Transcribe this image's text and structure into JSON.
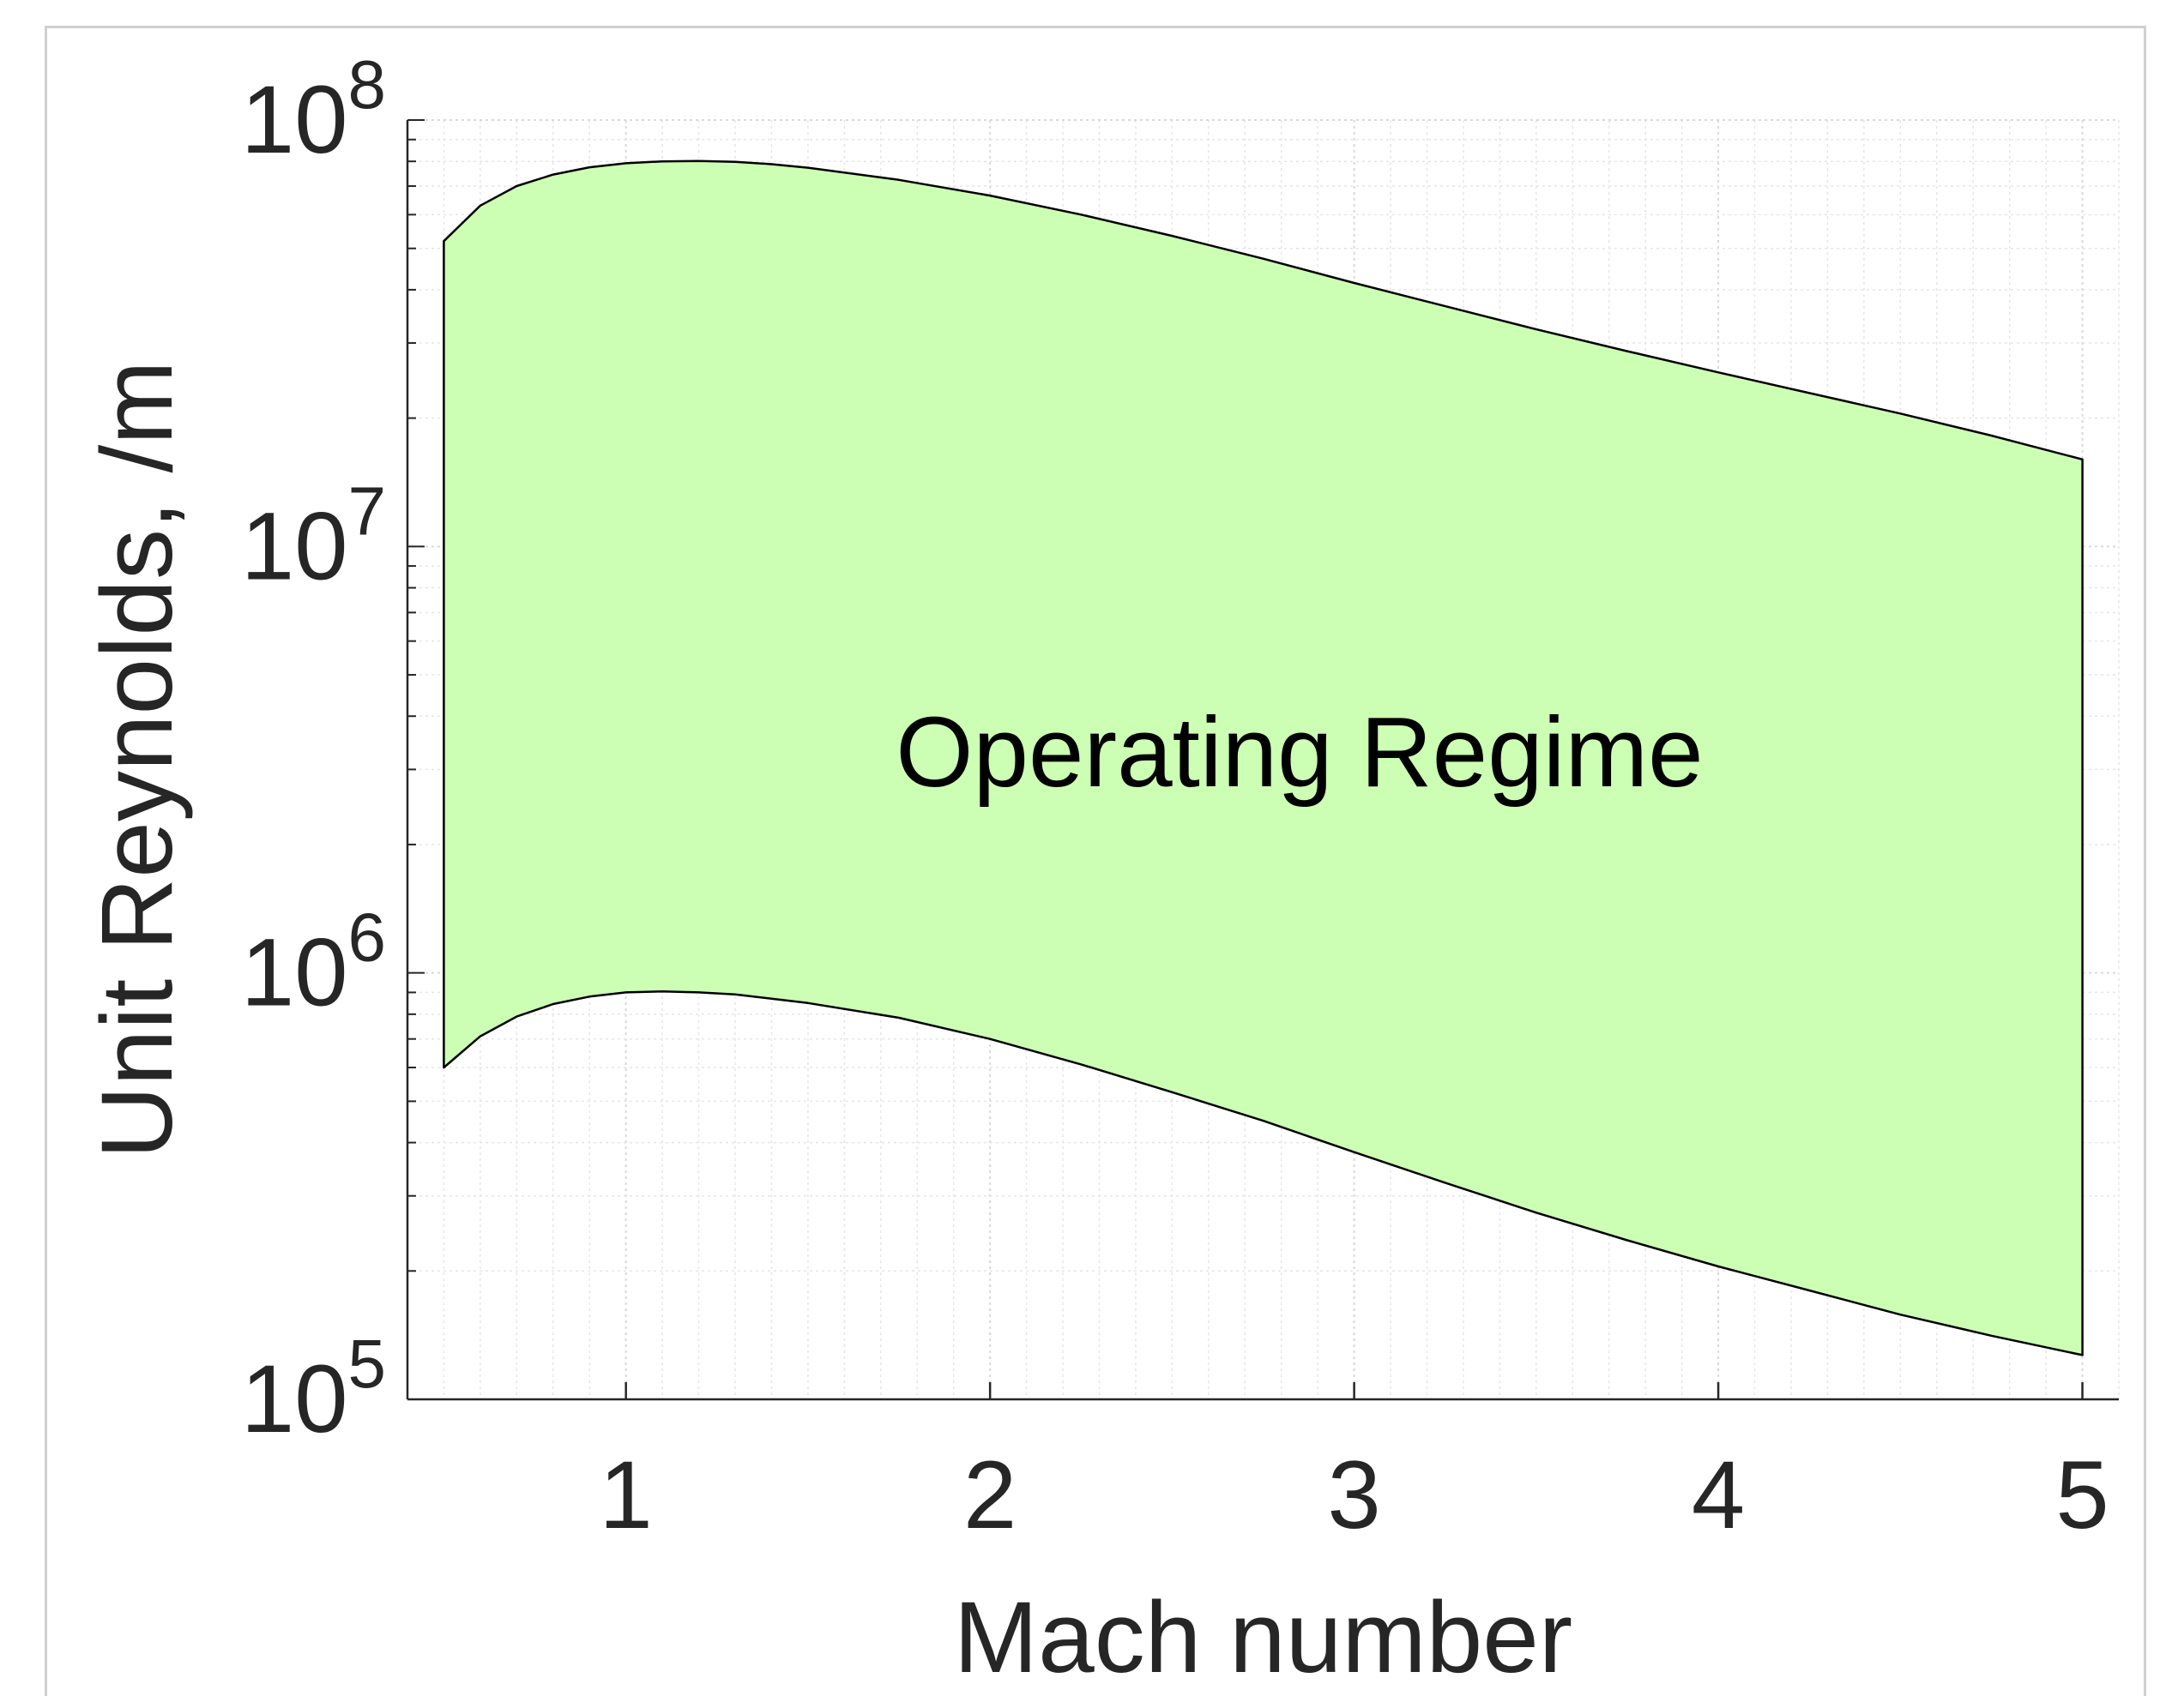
{
  "chart_data": {
    "type": "area",
    "title": "",
    "xlabel": "Mach number",
    "ylabel": "Unit Reynolds, /m",
    "xlim": [
      0.4,
      5.1
    ],
    "ylim": [
      100000,
      100000000
    ],
    "yscale": "log",
    "grid": "on (major and minor)",
    "x_ticks": [
      {
        "value": 1,
        "label": "1"
      },
      {
        "value": 2,
        "label": "2"
      },
      {
        "value": 3,
        "label": "3"
      },
      {
        "value": 4,
        "label": "4"
      },
      {
        "value": 5,
        "label": "5"
      }
    ],
    "y_ticks": [
      {
        "value": 100000,
        "base": "10",
        "exp": "5"
      },
      {
        "value": 1000000,
        "base": "10",
        "exp": "6"
      },
      {
        "value": 10000000,
        "base": "10",
        "exp": "7"
      },
      {
        "value": 100000000,
        "base": "10",
        "exp": "8"
      }
    ],
    "fill_color": "#ccffb3",
    "edge_color": "#000000",
    "series": [
      {
        "role": "upper_bound",
        "x": [
          0.5,
          0.6,
          0.7,
          0.8,
          0.9,
          1.0,
          1.1,
          1.2,
          1.3,
          1.4,
          1.5,
          1.75,
          2.0,
          2.25,
          2.5,
          2.75,
          3.0,
          3.25,
          3.5,
          3.75,
          4.0,
          4.25,
          4.5,
          4.75,
          5.0
        ],
        "y": [
          52000000,
          63000000,
          70000000,
          74500000,
          77500000,
          79200000,
          80000000,
          80200000,
          79800000,
          78800000,
          77300000,
          72400000,
          66500000,
          60000000,
          53500000,
          47300000,
          41500000,
          36600000,
          32300000,
          28700000,
          25600000,
          22900000,
          20500000,
          18200000,
          16000000
        ]
      },
      {
        "role": "lower_bound",
        "x": [
          0.5,
          0.6,
          0.7,
          0.8,
          0.9,
          1.0,
          1.1,
          1.2,
          1.3,
          1.4,
          1.5,
          1.75,
          2.0,
          2.25,
          2.5,
          2.75,
          3.0,
          3.25,
          3.5,
          3.75,
          4.0,
          4.25,
          4.5,
          4.75,
          5.0
        ],
        "y": [
          600000,
          710000,
          790000,
          845000,
          880000,
          900000,
          905000,
          900000,
          890000,
          870000,
          850000,
          785000,
          700000,
          610000,
          525000,
          450000,
          380000,
          322000,
          274000,
          236000,
          205000,
          180000,
          158000,
          141000,
          127000
        ]
      }
    ],
    "annotations": [
      {
        "text": "Operating Regime",
        "x": 2.85,
        "y": 3300000
      }
    ]
  }
}
